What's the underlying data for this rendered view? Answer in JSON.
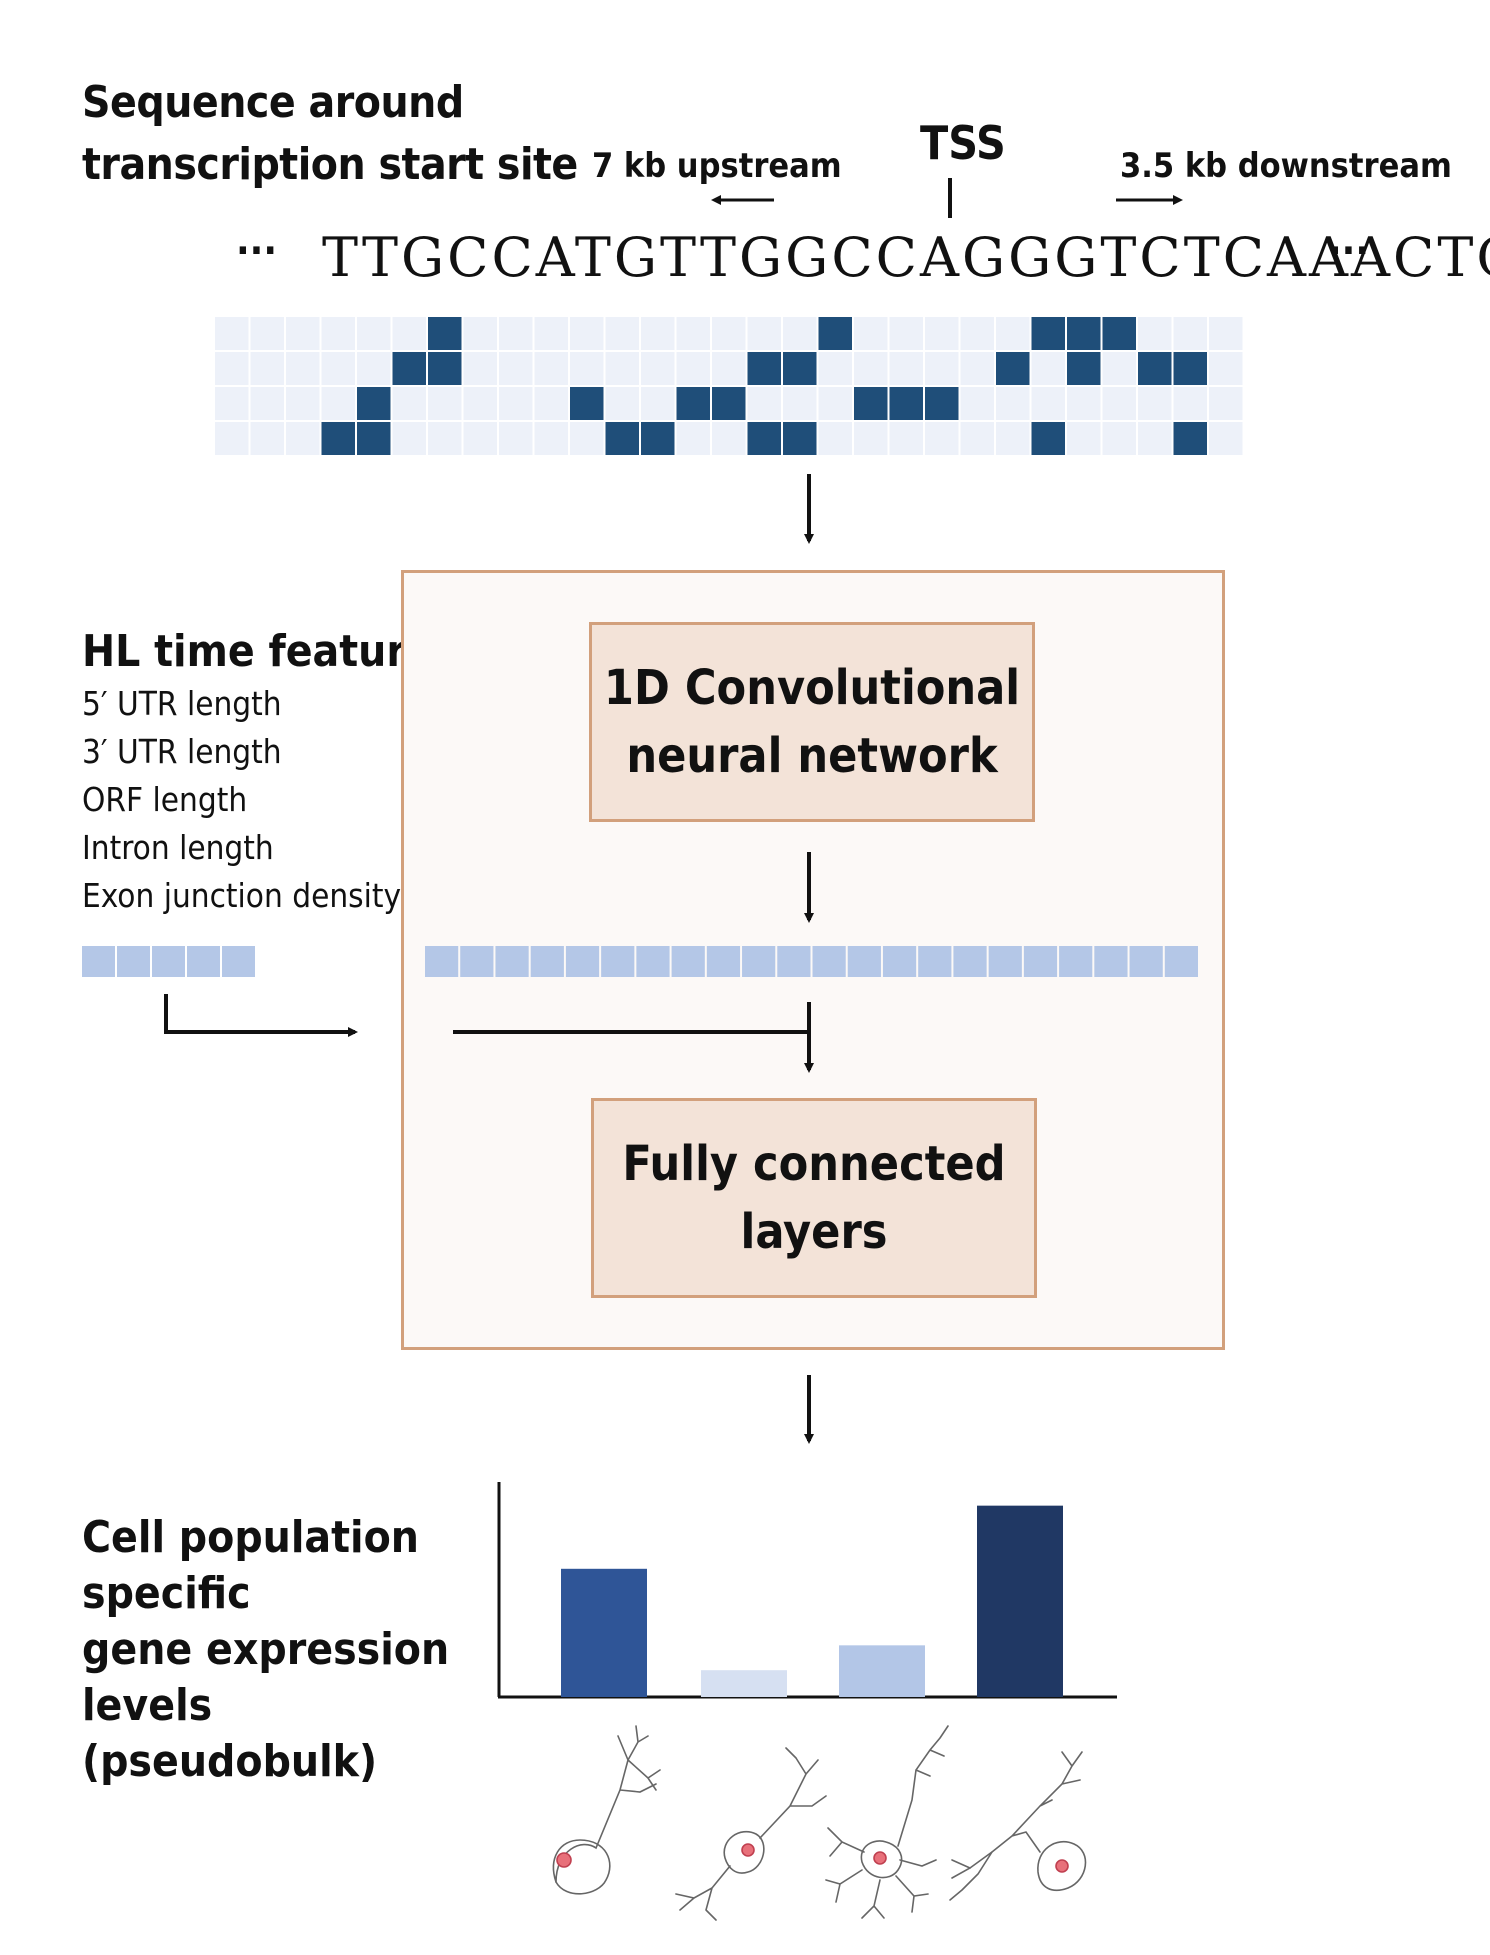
{
  "sequence_section": {
    "title_line1": "Sequence around",
    "title_line2": "transcription start site",
    "upstream_label": "7 kb upstream",
    "tss_label": "TSS",
    "downstream_label": "3.5 kb downstream",
    "dots_left": "···",
    "dna": "TTGCCATGTTGGCCAGGGTCTCAAACTC",
    "dots_right": "···",
    "onehot_rows": [
      "00000010000000000100000111000",
      "00000110000000011000001010110",
      "00001000001001100011100000000",
      "00011000000110011000000100010"
    ]
  },
  "features": {
    "title": "HL time features",
    "items": [
      "5′ UTR length",
      "3′ UTR length",
      "ORF length",
      "Intron length",
      "Exon junction density"
    ]
  },
  "model": {
    "cnn_line1": "1D Convolutional",
    "cnn_line2": "neural network",
    "fc_line1": "Fully connected",
    "fc_line2": "layers"
  },
  "output": {
    "label_line1": "Cell population specific",
    "label_line2": "gene expression levels",
    "label_line3": "(pseudobulk)"
  },
  "chart_data": {
    "type": "bar",
    "categories": [
      "",
      "",
      "",
      ""
    ],
    "values": [
      0.67,
      0.14,
      0.27,
      1.0
    ],
    "colors": [
      "#2f5597",
      "#d6e0f2",
      "#b3c6e7",
      "#203864"
    ],
    "category_icons": [
      "neuron-pyramidal-icon",
      "neuron-bipolar-icon",
      "neuron-multipolar-icon",
      "neuron-unipolar-icon"
    ],
    "title": "",
    "xlabel": "",
    "ylabel": "",
    "ylim": [
      0,
      1.04
    ]
  },
  "colors": {
    "onehot_on": "#1f4e79",
    "onehot_off": "#edf1f9",
    "embedding": "#b4c7e7",
    "box_border": "#d2a07c",
    "box_fill": "#f3e3d8",
    "outer_fill": "#fcf9f7",
    "cell_nucleus": "#e8707a"
  }
}
